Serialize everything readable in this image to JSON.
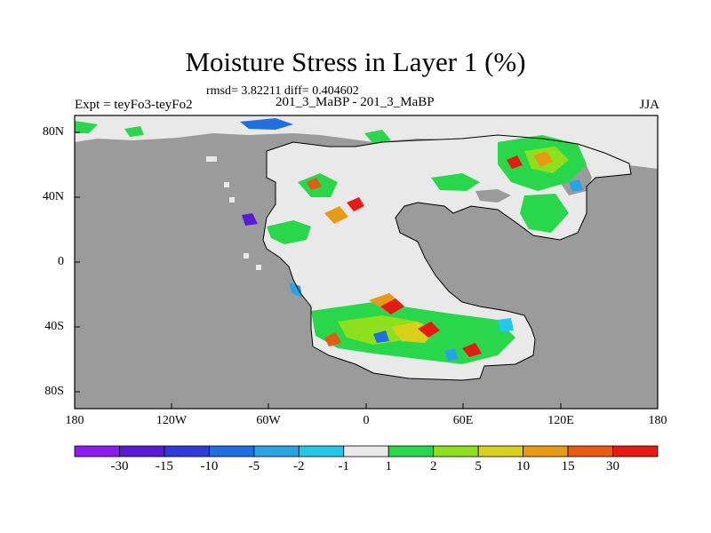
{
  "title": "Moisture Stress in Layer 1 (%)",
  "subtitle": "rmsd= 3.82211 diff= 0.404602",
  "left_title": "Expt = teyFo3-teyFo2",
  "center_title": "201_3_MaBP - 201_3_MaBP",
  "right_title": "JJA",
  "x_ticks": [
    "180",
    "120W",
    "60W",
    "0",
    "60E",
    "120E",
    "180"
  ],
  "y_ticks": [
    "80N",
    "40N",
    "0",
    "40S",
    "80S"
  ],
  "colors": {
    "land_mask": "#9b9b9b",
    "zero_band": "#e9e9e9"
  },
  "colorbar": {
    "levels": [
      "-30",
      "-15",
      "-10",
      "-5",
      "-2",
      "-1",
      "1",
      "2",
      "5",
      "10",
      "15",
      "30"
    ],
    "colors": [
      "#8a1cf0",
      "#5a1ad8",
      "#2e3bd8",
      "#1f6fe0",
      "#2aa3e6",
      "#22c8e8",
      "#e9e9e9",
      "#28d84a",
      "#8ee01e",
      "#d8d01a",
      "#e89a14",
      "#e85a12",
      "#e81a14"
    ]
  }
}
